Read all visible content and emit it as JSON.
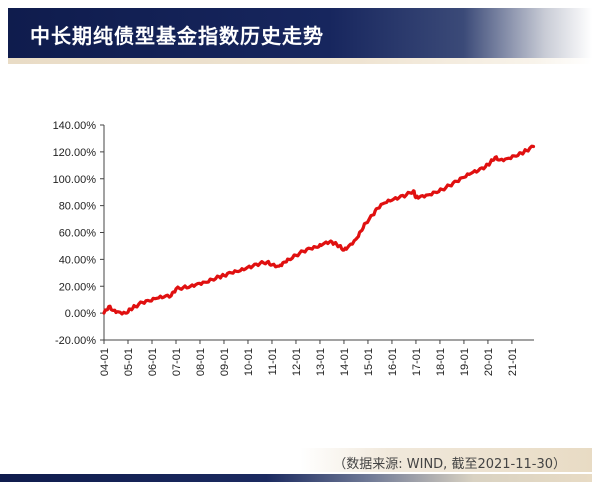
{
  "header": {
    "title": "中长期纯债型基金指数历史走势"
  },
  "footer": {
    "source": "（数据来源: WIND, 截至2021-11-30）"
  },
  "colors": {
    "line": "#e01010",
    "header_bg": "#0f1c4d",
    "accent_sand": "#e8dbc4"
  },
  "chart_data": {
    "type": "line",
    "title": "",
    "xlabel": "",
    "ylabel": "",
    "ylim": [
      -20,
      140
    ],
    "y_ticks": [
      "-20.00%",
      "0.00%",
      "20.00%",
      "40.00%",
      "60.00%",
      "80.00%",
      "100.00%",
      "120.00%",
      "140.00%"
    ],
    "x_ticks": [
      "04-01",
      "05-01",
      "06-01",
      "07-01",
      "08-01",
      "09-01",
      "10-01",
      "11-01",
      "12-01",
      "13-01",
      "14-01",
      "15-01",
      "16-01",
      "17-01",
      "18-01",
      "19-01",
      "20-01",
      "21-01"
    ],
    "grid": false,
    "legend": "none",
    "series": [
      {
        "x": [
          2004.0,
          2004.2,
          2004.4,
          2004.6,
          2004.9,
          2005.1,
          2005.3,
          2005.6,
          2005.9,
          2006.2,
          2006.5,
          2006.8,
          2007.0,
          2007.3,
          2007.6,
          2007.9,
          2008.2,
          2008.5,
          2008.8,
          2009.0,
          2009.3,
          2009.6,
          2009.9,
          2010.2,
          2010.5,
          2010.8,
          2011.0,
          2011.3,
          2011.5,
          2011.7,
          2012.0,
          2012.3,
          2012.6,
          2012.9,
          2013.1,
          2013.4,
          2013.6,
          2013.8,
          2014.0,
          2014.2,
          2014.5,
          2014.7,
          2014.9,
          2015.2,
          2015.4,
          2015.7,
          2016.0,
          2016.3,
          2016.6,
          2016.9,
          2017.0,
          2017.2,
          2017.5,
          2017.8,
          2018.1,
          2018.4,
          2018.7,
          2019.0,
          2019.3,
          2019.6,
          2019.9,
          2020.1,
          2020.3,
          2020.5,
          2020.8,
          2021.1,
          2021.4,
          2021.6,
          2021.9
        ],
        "values": [
          0,
          5,
          2,
          1,
          0,
          3,
          5,
          8,
          9,
          11,
          12,
          13,
          18,
          19,
          20,
          22,
          23,
          25,
          27,
          28,
          30,
          31,
          33,
          35,
          37,
          38,
          36,
          35,
          38,
          40,
          43,
          46,
          48,
          49,
          51,
          53,
          52,
          50,
          47,
          50,
          55,
          61,
          67,
          73,
          78,
          82,
          84,
          86,
          88,
          91,
          86,
          87,
          88,
          90,
          92,
          95,
          98,
          101,
          104,
          106,
          109,
          112,
          116,
          114,
          115,
          117,
          119,
          121,
          124
        ]
      }
    ]
  }
}
